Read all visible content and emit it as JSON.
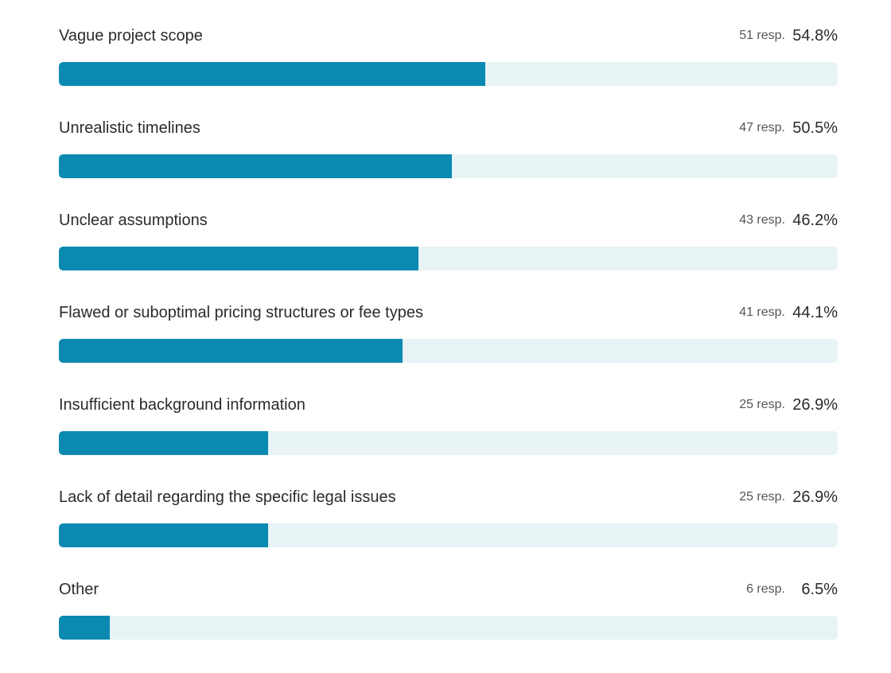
{
  "chart_data": {
    "type": "bar",
    "orientation": "horizontal",
    "categories": [
      "Vague project scope",
      "Unrealistic timelines",
      "Unclear assumptions",
      "Flawed or suboptimal pricing structures or fee types",
      "Insufficient background information",
      "Lack of detail regarding the specific legal issues",
      "Other"
    ],
    "responses": [
      51,
      47,
      43,
      41,
      25,
      25,
      6
    ],
    "values": [
      54.8,
      50.5,
      46.2,
      44.1,
      26.9,
      26.9,
      6.5
    ],
    "response_labels": [
      "51 resp.",
      "47 resp.",
      "43 resp.",
      "41 resp.",
      "25 resp.",
      "25 resp.",
      "6 resp."
    ],
    "value_labels": [
      "54.8%",
      "50.5%",
      "46.2%",
      "44.1%",
      "26.9%",
      "26.9%",
      "6.5%"
    ],
    "xlim": [
      0,
      100
    ],
    "unit": "%",
    "grid": false,
    "legend": "none",
    "colors": {
      "bar": "#0a89b1",
      "track": "#e8f3f6",
      "label_text": "#2b2b2b",
      "response_text": "#555555"
    }
  }
}
